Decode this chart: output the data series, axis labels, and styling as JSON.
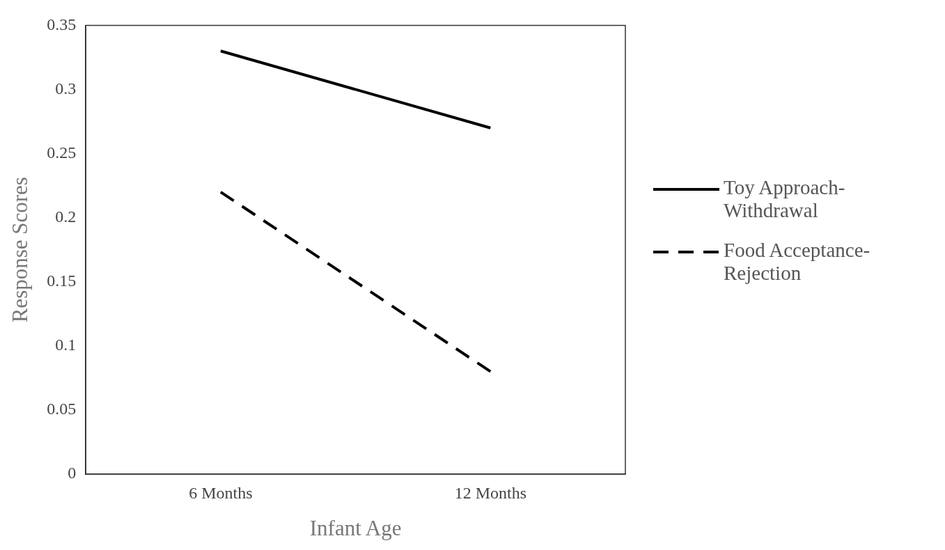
{
  "chart_data": {
    "type": "line",
    "xlabel": "Infant Age",
    "ylabel": "Response Scores",
    "categories": [
      "6 Months",
      "12 Months"
    ],
    "series": [
      {
        "name": "Toy Approach-Withdrawal",
        "color": "#000000",
        "line_style": "solid",
        "values": [
          0.33,
          0.27
        ]
      },
      {
        "name": "Food Acceptance-Rejection",
        "color": "#000000",
        "line_style": "dashed",
        "values": [
          0.22,
          0.08
        ]
      }
    ],
    "ylim": [
      0,
      0.35
    ],
    "yticks": [
      0,
      0.05,
      0.1,
      0.15,
      0.2,
      0.25,
      0.3,
      0.35
    ],
    "grid": false,
    "legend": "right",
    "marker": "none"
  }
}
